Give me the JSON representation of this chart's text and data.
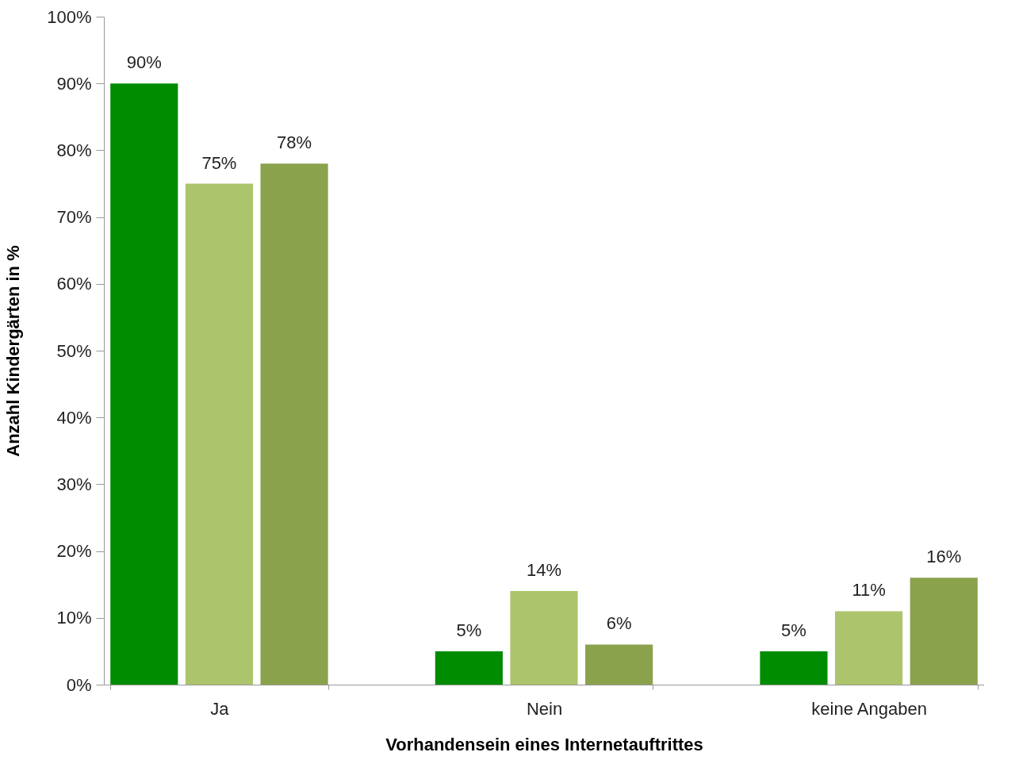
{
  "chart_data": {
    "type": "bar",
    "xlabel": "Vorhandensein eines Internetauftrittes",
    "ylabel": "Anzahl Kindergärten in %",
    "categories": [
      "Ja",
      "Nein",
      "keine Angaben"
    ],
    "series": [
      {
        "color": "#008c00",
        "values": [
          90,
          5,
          5
        ],
        "value_labels": [
          "90%",
          "5%",
          "5%"
        ]
      },
      {
        "color": "#acc46c",
        "values": [
          75,
          14,
          11
        ],
        "value_labels": [
          "75%",
          "14%",
          "11%"
        ]
      },
      {
        "color": "#8aa24c",
        "values": [
          78,
          6,
          16
        ],
        "value_labels": [
          "78%",
          "6%",
          "16%"
        ]
      }
    ],
    "ylim": [
      0,
      100
    ],
    "yticks": [
      {
        "value": 0,
        "label": "0%"
      },
      {
        "value": 10,
        "label": "10%"
      },
      {
        "value": 20,
        "label": "20%"
      },
      {
        "value": 30,
        "label": "30%"
      },
      {
        "value": 40,
        "label": "40%"
      },
      {
        "value": 50,
        "label": "50%"
      },
      {
        "value": 60,
        "label": "60%"
      },
      {
        "value": 70,
        "label": "70%"
      },
      {
        "value": 80,
        "label": "80%"
      },
      {
        "value": 90,
        "label": "90%"
      },
      {
        "value": 100,
        "label": "100%"
      }
    ],
    "grid": false,
    "legend": false
  }
}
